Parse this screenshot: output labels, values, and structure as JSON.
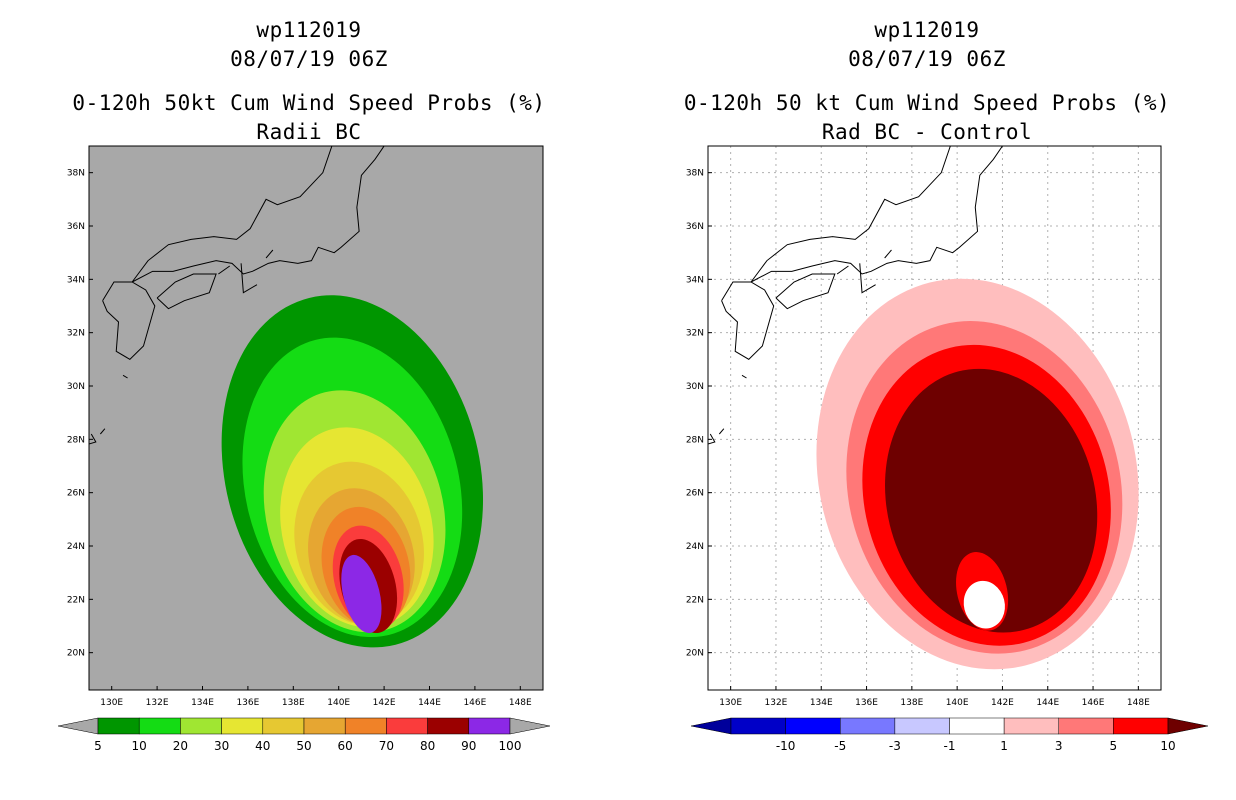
{
  "chart_data": [
    {
      "type": "map-contour",
      "storm_id": "wp112019",
      "datetime": "08/07/19 06Z",
      "title": "0-120h 50kt Cum Wind Speed Probs (%)",
      "subtitle": "Radii BC",
      "x_ticks": [
        "130E",
        "132E",
        "134E",
        "136E",
        "138E",
        "140E",
        "142E",
        "144E",
        "146E",
        "148E"
      ],
      "y_ticks": [
        "20N",
        "22N",
        "24N",
        "26N",
        "28N",
        "30N",
        "32N",
        "34N",
        "36N",
        "38N"
      ],
      "lon_range": [
        129,
        149
      ],
      "lat_range": [
        18.6,
        39
      ],
      "background": "#a8a8a8",
      "land_fill": "none",
      "grid": false,
      "colorbar": {
        "labels": [
          "5",
          "10",
          "20",
          "30",
          "40",
          "50",
          "60",
          "70",
          "80",
          "90",
          "100"
        ],
        "colors": [
          "#009600",
          "#14dc14",
          "#a0e632",
          "#e6e632",
          "#e6c832",
          "#e6a632",
          "#f08228",
          "#fa3c3c",
          "#9b0000",
          "#8c28e6"
        ],
        "end_color": "#a8a8a8"
      },
      "contours": [
        {
          "level": 5,
          "color": "#009600",
          "center": [
            140.6,
            26.8
          ],
          "rx": 5.6,
          "ry": 6.7
        },
        {
          "level": 10,
          "color": "#14dc14",
          "center": [
            140.6,
            26.2
          ],
          "rx": 4.7,
          "ry": 5.7
        },
        {
          "level": 20,
          "color": "#a0e632",
          "center": [
            140.7,
            25.3
          ],
          "rx": 3.9,
          "ry": 4.6
        },
        {
          "level": 30,
          "color": "#e6e632",
          "center": [
            140.8,
            24.7
          ],
          "rx": 3.3,
          "ry": 3.8
        },
        {
          "level": 40,
          "color": "#e6c832",
          "center": [
            140.9,
            24.1
          ],
          "rx": 2.8,
          "ry": 3.1
        },
        {
          "level": 50,
          "color": "#e6a632",
          "center": [
            141.0,
            23.6
          ],
          "rx": 2.3,
          "ry": 2.6
        },
        {
          "level": 60,
          "color": "#f08228",
          "center": [
            141.2,
            23.2
          ],
          "rx": 1.9,
          "ry": 2.3
        },
        {
          "level": 70,
          "color": "#fa3c3c",
          "center": [
            141.3,
            22.8
          ],
          "rx": 1.5,
          "ry": 2.0
        },
        {
          "level": 80,
          "color": "#9b0000",
          "center": [
            141.3,
            22.5
          ],
          "rx": 1.2,
          "ry": 1.8
        },
        {
          "level": 90,
          "color": "#8c28e6",
          "center": [
            141.0,
            22.2
          ],
          "rx": 0.8,
          "ry": 1.5
        }
      ]
    },
    {
      "type": "map-contour",
      "storm_id": "wp112019",
      "datetime": "08/07/19 06Z",
      "title": "0-120h 50 kt Cum Wind Speed Probs (%)",
      "subtitle": "Rad BC - Control",
      "x_ticks": [
        "130E",
        "132E",
        "134E",
        "136E",
        "138E",
        "140E",
        "142E",
        "144E",
        "146E",
        "148E"
      ],
      "y_ticks": [
        "20N",
        "22N",
        "24N",
        "26N",
        "28N",
        "30N",
        "32N",
        "34N",
        "36N",
        "38N"
      ],
      "lon_range": [
        129,
        149
      ],
      "lat_range": [
        18.6,
        39
      ],
      "background": "#ffffff",
      "grid": true,
      "colorbar": {
        "labels": [
          "-10",
          "-5",
          "-3",
          "-1",
          "1",
          "3",
          "5",
          "10"
        ],
        "colors": [
          "#0000c8",
          "#0000ff",
          "#7878ff",
          "#c8c8ff",
          "#ffffff",
          "#ffbebe",
          "#ff7878",
          "#ff0000"
        ],
        "start_color": "#00009b",
        "end_color": "#6e0000"
      },
      "contours": [
        {
          "level": 1,
          "color": "#ffbebe",
          "center": [
            140.9,
            26.7
          ],
          "rx": 7.0,
          "ry": 7.4
        },
        {
          "level": 3,
          "color": "#ff7878",
          "center": [
            141.2,
            26.2
          ],
          "rx": 6.0,
          "ry": 6.3
        },
        {
          "level": 5,
          "color": "#ff0000",
          "center": [
            141.3,
            25.9
          ],
          "rx": 5.4,
          "ry": 5.7
        },
        {
          "level": 10,
          "color": "#6e0000",
          "center": [
            141.5,
            25.7
          ],
          "rx": 4.6,
          "ry": 5.0
        },
        {
          "level": 5,
          "color": "#ff0000",
          "center": [
            141.1,
            22.3
          ],
          "rx": 1.1,
          "ry": 1.5
        },
        {
          "level": 1,
          "color": "#ffffff",
          "center": [
            141.2,
            21.8
          ],
          "rx": 0.9,
          "ry": 0.9
        }
      ]
    }
  ]
}
